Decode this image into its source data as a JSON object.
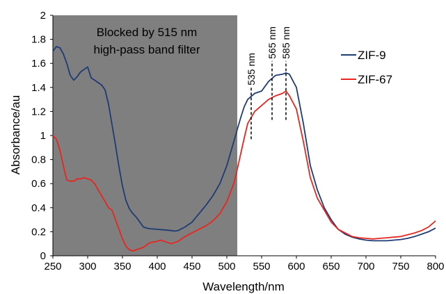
{
  "chart_data": {
    "type": "line",
    "xlabel": "Wavelength/nm",
    "ylabel": "Absorbance/au",
    "xlim": [
      250,
      800
    ],
    "ylim": [
      0,
      2
    ],
    "xticks": [
      250,
      300,
      350,
      400,
      450,
      500,
      550,
      600,
      650,
      700,
      750,
      800
    ],
    "yticks": [
      0,
      0.2,
      0.4,
      0.6,
      0.8,
      1,
      1.2,
      1.4,
      1.6,
      1.8,
      2
    ],
    "grid": false,
    "legend_position": "top-right",
    "blocked_region": {
      "x_range": [
        250,
        515
      ],
      "color": "#7f7f7f",
      "label_lines": [
        "Blocked by 515 nm",
        "high-pass band filter"
      ]
    },
    "peak_markers": [
      {
        "x": 535,
        "label": "535 nm",
        "y_range": [
          0.97,
          1.4
        ]
      },
      {
        "x": 565,
        "label": "565 nm",
        "y_range": [
          1.13,
          1.62
        ]
      },
      {
        "x": 585,
        "label": "585 nm",
        "y_range": [
          1.13,
          1.62
        ]
      }
    ],
    "series": [
      {
        "name": "ZIF-9",
        "color": "#1f3b73",
        "x": [
          250,
          255,
          260,
          265,
          270,
          275,
          280,
          285,
          290,
          295,
          300,
          305,
          310,
          315,
          320,
          325,
          330,
          335,
          340,
          345,
          350,
          355,
          360,
          365,
          370,
          375,
          380,
          385,
          390,
          400,
          410,
          420,
          425,
          430,
          440,
          450,
          460,
          470,
          480,
          490,
          500,
          510,
          515,
          520,
          525,
          530,
          540,
          550,
          560,
          570,
          580,
          585,
          590,
          600,
          610,
          620,
          630,
          640,
          650,
          660,
          670,
          680,
          690,
          700,
          710,
          720,
          730,
          740,
          750,
          760,
          770,
          780,
          790,
          800
        ],
        "y": [
          1.7,
          1.74,
          1.73,
          1.68,
          1.6,
          1.5,
          1.46,
          1.49,
          1.53,
          1.55,
          1.57,
          1.48,
          1.46,
          1.44,
          1.42,
          1.38,
          1.26,
          1.09,
          0.92,
          0.74,
          0.58,
          0.46,
          0.39,
          0.35,
          0.32,
          0.28,
          0.24,
          0.23,
          0.225,
          0.22,
          0.215,
          0.21,
          0.205,
          0.21,
          0.24,
          0.28,
          0.35,
          0.42,
          0.5,
          0.6,
          0.75,
          0.95,
          1.05,
          1.15,
          1.24,
          1.3,
          1.35,
          1.37,
          1.45,
          1.5,
          1.51,
          1.52,
          1.51,
          1.4,
          1.1,
          0.75,
          0.55,
          0.4,
          0.3,
          0.22,
          0.18,
          0.155,
          0.14,
          0.13,
          0.125,
          0.125,
          0.125,
          0.13,
          0.135,
          0.145,
          0.16,
          0.18,
          0.2,
          0.23
        ]
      },
      {
        "name": "ZIF-67",
        "color": "#e8261f",
        "x": [
          250,
          255,
          260,
          265,
          270,
          275,
          280,
          285,
          290,
          295,
          300,
          305,
          310,
          315,
          320,
          325,
          330,
          335,
          340,
          345,
          350,
          355,
          360,
          365,
          370,
          375,
          380,
          385,
          390,
          400,
          405,
          410,
          420,
          430,
          440,
          450,
          460,
          470,
          480,
          490,
          500,
          510,
          515,
          520,
          525,
          530,
          540,
          550,
          560,
          570,
          580,
          585,
          590,
          600,
          610,
          620,
          630,
          640,
          650,
          660,
          670,
          680,
          690,
          700,
          710,
          720,
          730,
          740,
          750,
          760,
          770,
          780,
          790,
          800
        ],
        "y": [
          1.0,
          0.97,
          0.88,
          0.75,
          0.63,
          0.62,
          0.62,
          0.64,
          0.64,
          0.65,
          0.64,
          0.63,
          0.6,
          0.55,
          0.5,
          0.45,
          0.4,
          0.38,
          0.3,
          0.22,
          0.14,
          0.08,
          0.05,
          0.04,
          0.05,
          0.06,
          0.07,
          0.09,
          0.11,
          0.12,
          0.13,
          0.12,
          0.1,
          0.12,
          0.16,
          0.19,
          0.22,
          0.25,
          0.29,
          0.35,
          0.45,
          0.6,
          0.72,
          0.85,
          0.98,
          1.1,
          1.2,
          1.25,
          1.3,
          1.33,
          1.35,
          1.37,
          1.33,
          1.22,
          0.95,
          0.65,
          0.48,
          0.38,
          0.28,
          0.22,
          0.19,
          0.16,
          0.15,
          0.145,
          0.14,
          0.145,
          0.15,
          0.155,
          0.16,
          0.175,
          0.19,
          0.21,
          0.24,
          0.29
        ]
      }
    ]
  }
}
